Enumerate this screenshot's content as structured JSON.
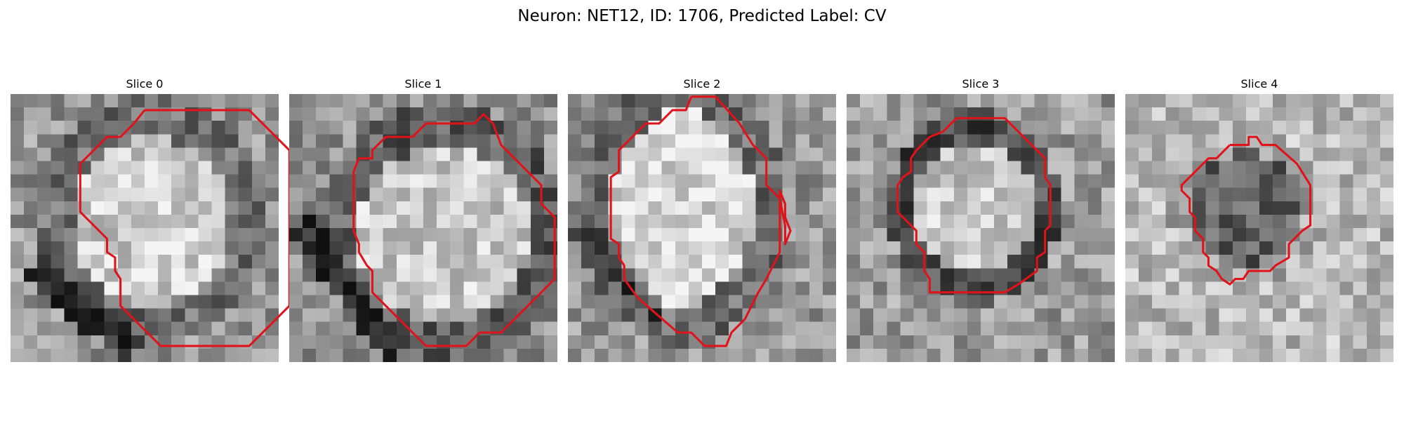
{
  "figure": {
    "title": "Neuron: NET12, ID: 1706, Predicted Label: CV",
    "contour_color": "#e0121a"
  },
  "panels": [
    {
      "title": "Slice 0",
      "image_description": "grayscale microscopy patch: bright roundish cell body, dark rim lower-left",
      "contour": [
        [
          10,
          1.2
        ],
        [
          17.8,
          1.2
        ],
        [
          20.8,
          4.2
        ],
        [
          20.8,
          15.8
        ],
        [
          17.8,
          18.8
        ],
        [
          11.2,
          18.8
        ],
        [
          8.2,
          15.8
        ],
        [
          8.2,
          13.8
        ],
        [
          7.8,
          13.2
        ],
        [
          7.8,
          12.2
        ],
        [
          7.2,
          11.8
        ],
        [
          7.2,
          10.8
        ],
        [
          5.2,
          8.8
        ],
        [
          5.2,
          5.2
        ],
        [
          7.2,
          3.2
        ],
        [
          8.2,
          3.2
        ],
        [
          9.2,
          2.2
        ],
        [
          10,
          1.2
        ]
      ]
    },
    {
      "title": "Slice 1",
      "image_description": "grayscale microscopy patch: bright oval cell body, dark band lower-left",
      "contour": [
        [
          8.2,
          3.2
        ],
        [
          9.2,
          3.2
        ],
        [
          10.2,
          2.2
        ],
        [
          13.8,
          2.2
        ],
        [
          14.5,
          1.5
        ],
        [
          15.2,
          2.2
        ],
        [
          15.8,
          3.8
        ],
        [
          17.8,
          5.8
        ],
        [
          18.8,
          6.8
        ],
        [
          18.8,
          8.2
        ],
        [
          19.8,
          9.2
        ],
        [
          19.8,
          13.8
        ],
        [
          17.8,
          15.8
        ],
        [
          16.8,
          16.8
        ],
        [
          15.8,
          17.8
        ],
        [
          14.2,
          17.8
        ],
        [
          13.2,
          18.8
        ],
        [
          10.2,
          18.8
        ],
        [
          8.2,
          16.8
        ],
        [
          7.2,
          15.8
        ],
        [
          6.2,
          14.8
        ],
        [
          6.2,
          13.2
        ],
        [
          5.8,
          12.8
        ],
        [
          5.2,
          11.8
        ],
        [
          5.2,
          11.2
        ],
        [
          4.8,
          10.2
        ],
        [
          4.8,
          5.8
        ],
        [
          5.2,
          4.8
        ],
        [
          6.2,
          4.8
        ],
        [
          6.2,
          4.2
        ],
        [
          7.2,
          3.2
        ],
        [
          8.2,
          3.2
        ]
      ]
    },
    {
      "title": "Slice 2",
      "image_description": "grayscale microscopy patch: bright oval cell body, dark streak lower-left",
      "contour": [
        [
          9.2,
          0.2
        ],
        [
          11,
          0.2
        ],
        [
          12.8,
          2.2
        ],
        [
          13.8,
          3.8
        ],
        [
          14.8,
          4.8
        ],
        [
          14.8,
          6.8
        ],
        [
          15.8,
          7.8
        ],
        [
          16.2,
          9.8
        ],
        [
          16.2,
          11.2
        ],
        [
          16.6,
          10.2
        ],
        [
          16.2,
          9.2
        ],
        [
          16.2,
          8.2
        ],
        [
          15.8,
          7.2
        ],
        [
          15.8,
          11.8
        ],
        [
          14.8,
          13.8
        ],
        [
          14.2,
          14.8
        ],
        [
          13.2,
          16.8
        ],
        [
          12.2,
          17.8
        ],
        [
          11.8,
          18.8
        ],
        [
          10.2,
          18.8
        ],
        [
          9.2,
          17.8
        ],
        [
          8.2,
          17.8
        ],
        [
          5.2,
          15.2
        ],
        [
          4.2,
          13.8
        ],
        [
          4.2,
          12.8
        ],
        [
          3.8,
          12.2
        ],
        [
          3.8,
          11.2
        ],
        [
          3.2,
          10.8
        ],
        [
          3.2,
          9.8
        ],
        [
          3.2,
          8.2
        ],
        [
          3.2,
          6.2
        ],
        [
          3.8,
          5.8
        ],
        [
          3.8,
          4.2
        ],
        [
          4.8,
          3.2
        ],
        [
          5.8,
          2.2
        ],
        [
          6.8,
          2.2
        ],
        [
          7.8,
          1.2
        ],
        [
          8.8,
          1.2
        ],
        [
          9.2,
          0.2
        ]
      ]
    },
    {
      "title": "Slice 3",
      "image_description": "grayscale microscopy patch: bright round cell body inside dark ring",
      "contour": [
        [
          8.2,
          1.8
        ],
        [
          11.8,
          1.8
        ],
        [
          14.8,
          4.8
        ],
        [
          14.8,
          6.2
        ],
        [
          15.2,
          6.8
        ],
        [
          15.2,
          9.8
        ],
        [
          14.8,
          10.2
        ],
        [
          14.8,
          11.8
        ],
        [
          14.2,
          12.2
        ],
        [
          14.2,
          13.2
        ],
        [
          12.8,
          14.2
        ],
        [
          11.8,
          14.8
        ],
        [
          6.2,
          14.8
        ],
        [
          6.2,
          13.8
        ],
        [
          5.8,
          13.2
        ],
        [
          5.8,
          11.8
        ],
        [
          5.2,
          11.2
        ],
        [
          5.2,
          10.2
        ],
        [
          4.8,
          9.8
        ],
        [
          4.2,
          9.2
        ],
        [
          3.8,
          8.8
        ],
        [
          3.8,
          6.8
        ],
        [
          4.2,
          6.2
        ],
        [
          4.8,
          5.8
        ],
        [
          4.8,
          4.8
        ],
        [
          5.2,
          4.2
        ],
        [
          6.2,
          3.2
        ],
        [
          7.2,
          2.8
        ],
        [
          8.2,
          1.8
        ]
      ]
    },
    {
      "title": "Slice 4",
      "image_description": "grayscale microscopy patch: darker roundish structure in center of bright noisy field",
      "contour": [
        [
          7.8,
          3.8
        ],
        [
          9.2,
          3.8
        ],
        [
          9.2,
          3.2
        ],
        [
          9.8,
          3.2
        ],
        [
          10.2,
          3.8
        ],
        [
          11.2,
          3.8
        ],
        [
          12.8,
          5.2
        ],
        [
          13.8,
          6.8
        ],
        [
          13.8,
          9.8
        ],
        [
          13.2,
          10.2
        ],
        [
          12.2,
          11.2
        ],
        [
          12.2,
          12.2
        ],
        [
          11.2,
          12.8
        ],
        [
          10.8,
          13.2
        ],
        [
          9.2,
          13.2
        ],
        [
          8.8,
          13.8
        ],
        [
          8.2,
          13.8
        ],
        [
          7.8,
          14.2
        ],
        [
          7.2,
          13.8
        ],
        [
          6.8,
          13.2
        ],
        [
          6.2,
          12.8
        ],
        [
          6.2,
          12.2
        ],
        [
          5.8,
          11.8
        ],
        [
          5.8,
          10.8
        ],
        [
          5.2,
          10.2
        ],
        [
          5.2,
          9.2
        ],
        [
          4.8,
          8.8
        ],
        [
          4.8,
          7.8
        ],
        [
          4.2,
          7.2
        ],
        [
          4.2,
          6.8
        ],
        [
          5.2,
          5.8
        ],
        [
          6.2,
          4.8
        ],
        [
          6.8,
          4.8
        ],
        [
          7.8,
          3.8
        ]
      ]
    }
  ]
}
